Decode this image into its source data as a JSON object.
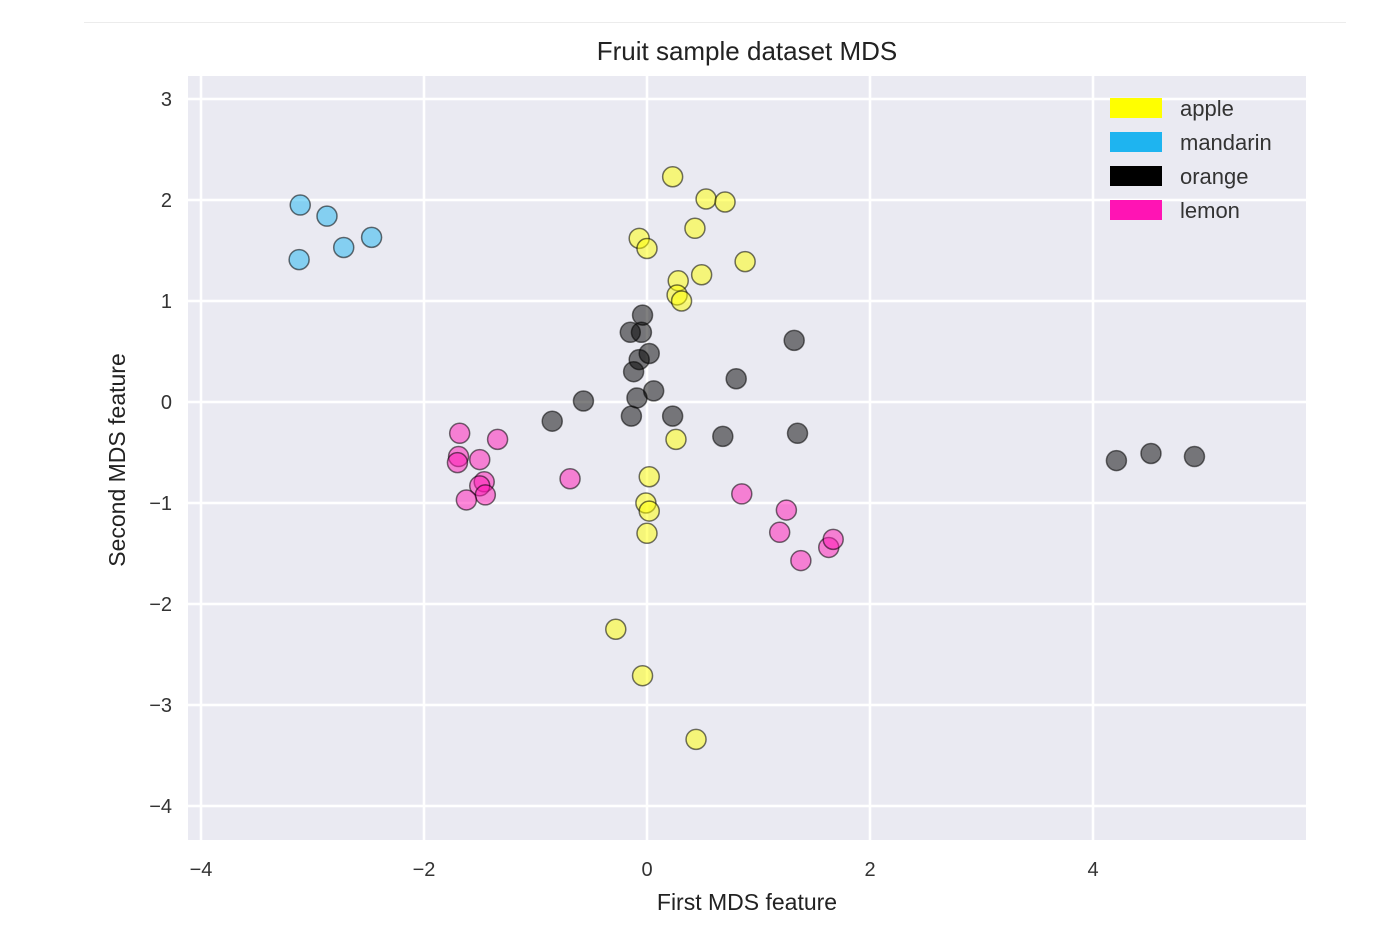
{
  "chart_data": {
    "type": "scatter",
    "title": "Fruit sample dataset MDS",
    "xlabel": "First MDS feature",
    "ylabel": "Second MDS feature",
    "xlim": [
      -4.1,
      5.9
    ],
    "ylim": [
      -4.35,
      3.25
    ],
    "xticks": [
      -4,
      -2,
      0,
      2,
      4
    ],
    "xtick_labels": [
      "−4",
      "−2",
      "0",
      "2",
      "4"
    ],
    "yticks": [
      -4,
      -3,
      -2,
      -1,
      0,
      1,
      2,
      3
    ],
    "ytick_labels": [
      "−4",
      "−3",
      "−2",
      "−1",
      "0",
      "1",
      "2",
      "3"
    ],
    "grid": true,
    "legend_position": "top-right",
    "background": "#eaeaf2",
    "series": [
      {
        "name": "apple",
        "color": "#ffff00",
        "points": [
          [
            0.23,
            2.23
          ],
          [
            0.53,
            2.01
          ],
          [
            0.7,
            1.98
          ],
          [
            0.43,
            1.72
          ],
          [
            -0.07,
            1.62
          ],
          [
            0.0,
            1.52
          ],
          [
            0.88,
            1.39
          ],
          [
            0.49,
            1.26
          ],
          [
            0.28,
            1.2
          ],
          [
            0.27,
            1.06
          ],
          [
            0.31,
            1.0
          ],
          [
            0.26,
            -0.37
          ],
          [
            0.02,
            -0.74
          ],
          [
            -0.01,
            -1.0
          ],
          [
            0.02,
            -1.08
          ],
          [
            0.0,
            -1.3
          ],
          [
            -0.28,
            -2.25
          ],
          [
            -0.04,
            -2.71
          ],
          [
            0.44,
            -3.34
          ]
        ]
      },
      {
        "name": "mandarin",
        "color": "#1eb4f0",
        "points": [
          [
            -3.11,
            1.95
          ],
          [
            -2.87,
            1.84
          ],
          [
            -2.72,
            1.53
          ],
          [
            -2.47,
            1.63
          ],
          [
            -3.12,
            1.41
          ]
        ]
      },
      {
        "name": "orange",
        "color": "#000000",
        "points": [
          [
            -0.04,
            0.86
          ],
          [
            -0.15,
            0.69
          ],
          [
            -0.05,
            0.69
          ],
          [
            0.02,
            0.48
          ],
          [
            -0.07,
            0.42
          ],
          [
            -0.12,
            0.3
          ],
          [
            1.32,
            0.61
          ],
          [
            0.8,
            0.23
          ],
          [
            0.06,
            0.11
          ],
          [
            -0.09,
            0.04
          ],
          [
            -0.57,
            0.01
          ],
          [
            -0.85,
            -0.19
          ],
          [
            -0.14,
            -0.14
          ],
          [
            0.23,
            -0.14
          ],
          [
            0.68,
            -0.34
          ],
          [
            1.35,
            -0.31
          ],
          [
            4.21,
            -0.58
          ],
          [
            4.52,
            -0.51
          ],
          [
            4.91,
            -0.54
          ]
        ]
      },
      {
        "name": "lemon",
        "color": "#ff14b4",
        "points": [
          [
            -1.68,
            -0.31
          ],
          [
            -1.34,
            -0.37
          ],
          [
            -1.69,
            -0.54
          ],
          [
            -1.7,
            -0.6
          ],
          [
            -1.5,
            -0.57
          ],
          [
            -1.46,
            -0.79
          ],
          [
            -1.5,
            -0.83
          ],
          [
            -1.45,
            -0.92
          ],
          [
            -1.62,
            -0.97
          ],
          [
            -0.69,
            -0.76
          ],
          [
            0.85,
            -0.91
          ],
          [
            1.25,
            -1.07
          ],
          [
            1.19,
            -1.29
          ],
          [
            1.38,
            -1.57
          ],
          [
            1.63,
            -1.44
          ],
          [
            1.67,
            -1.36
          ]
        ]
      }
    ]
  }
}
